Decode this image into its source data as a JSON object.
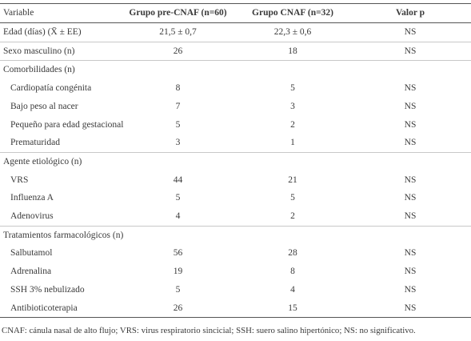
{
  "headers": [
    "Variable",
    "Grupo pre-CNAF (n=60)",
    "Grupo CNAF (n=32)",
    "Valor p"
  ],
  "rows": [
    {
      "label": "Edad (días) (X̄ ± EE)",
      "pre": "21,5 ± 0,7",
      "cnaf": "22,3 ± 0,6",
      "p": "NS"
    },
    {
      "label": "Sexo masculino (n)",
      "pre": "26",
      "cnaf": "18",
      "p": "NS"
    },
    {
      "label": "Comorbilidades (n)"
    },
    {
      "label": "Cardiopatía congénita",
      "pre": "8",
      "cnaf": "5",
      "p": "NS"
    },
    {
      "label": "Bajo peso al nacer",
      "pre": "7",
      "cnaf": "3",
      "p": "NS"
    },
    {
      "label": "Pequeño para edad gestacional",
      "pre": "5",
      "cnaf": "2",
      "p": "NS"
    },
    {
      "label": "Prematuridad",
      "pre": "3",
      "cnaf": "1",
      "p": "NS"
    },
    {
      "label": "Agente etiológico (n)"
    },
    {
      "label": "VRS",
      "pre": "44",
      "cnaf": "21",
      "p": "NS"
    },
    {
      "label": "Influenza A",
      "pre": "5",
      "cnaf": "5",
      "p": "NS"
    },
    {
      "label": "Adenovirus",
      "pre": "4",
      "cnaf": "2",
      "p": "NS"
    },
    {
      "label": "Tratamientos farmacológicos (n)"
    },
    {
      "label": "Salbutamol",
      "pre": "56",
      "cnaf": "28",
      "p": "NS"
    },
    {
      "label": "Adrenalina",
      "pre": "19",
      "cnaf": "8",
      "p": "NS"
    },
    {
      "label": "SSH 3% nebulizado",
      "pre": "5",
      "cnaf": "4",
      "p": "NS"
    },
    {
      "label": "Antibioticoterapia",
      "pre": "26",
      "cnaf": "15",
      "p": "NS"
    }
  ],
  "footnote": "CNAF: cánula nasal de alto flujo; VRS: virus respiratorio sincicial; SSH: suero salino hipertónico; NS: no significativo."
}
